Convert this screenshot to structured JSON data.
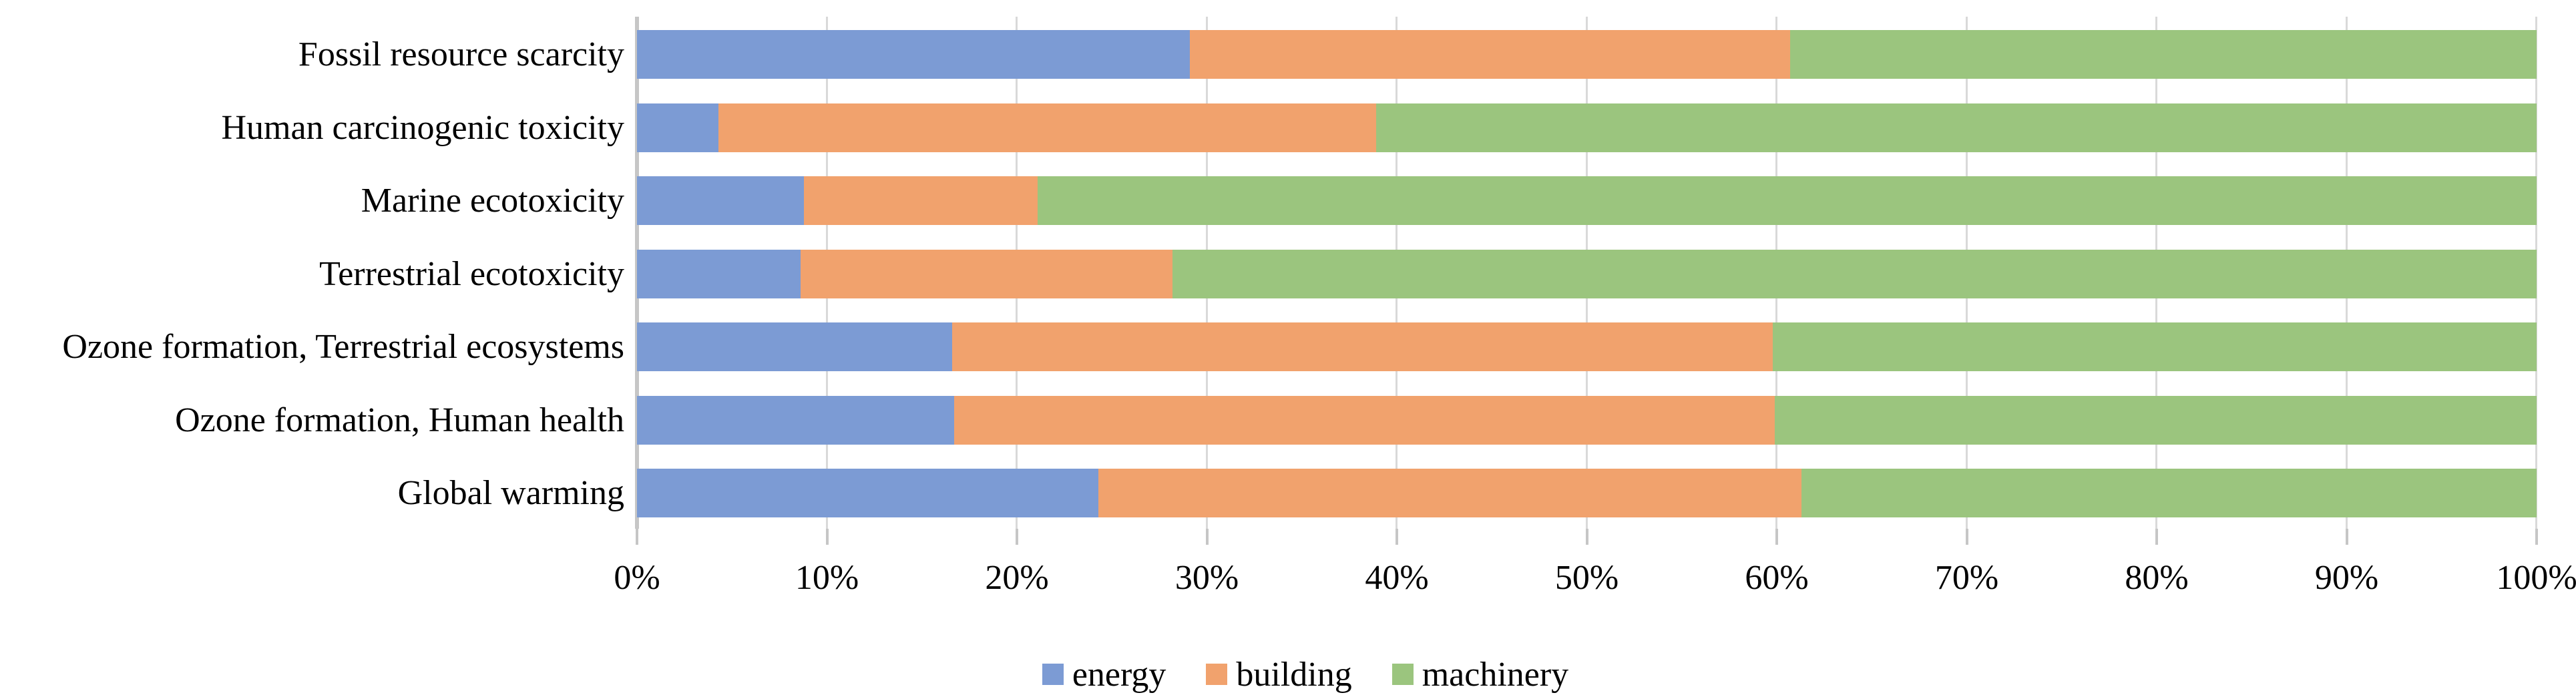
{
  "chart_data": {
    "type": "bar",
    "variant": "horizontal-stacked-100pct",
    "title": "",
    "xlabel": "",
    "ylabel": "",
    "unit": "%",
    "categories": [
      "Fossil resource scarcity",
      "Human carcinogenic toxicity",
      "Marine ecotoxicity",
      "Terrestrial ecotoxicity",
      "Ozone formation, Terrestrial ecosystems",
      "Ozone formation, Human health",
      "Global warming"
    ],
    "series": [
      {
        "name": "energy",
        "color": "#7C9BD4",
        "values": [
          29.1,
          4.3,
          8.8,
          8.6,
          16.6,
          16.7,
          24.3
        ]
      },
      {
        "name": "building",
        "color": "#F1A26D",
        "values": [
          31.6,
          34.6,
          12.3,
          19.6,
          43.2,
          43.2,
          37.0
        ]
      },
      {
        "name": "machinery",
        "color": "#9BC57E",
        "values": [
          39.3,
          61.1,
          78.9,
          71.8,
          40.2,
          40.1,
          38.7
        ]
      }
    ],
    "x_axis": {
      "min": 0,
      "max": 100,
      "tick_step": 10,
      "tick_labels": [
        "0%",
        "10%",
        "20%",
        "30%",
        "40%",
        "50%",
        "60%",
        "70%",
        "80%",
        "90%",
        "100%"
      ],
      "grid": true
    },
    "legend": {
      "position": "bottom",
      "entries": [
        "energy",
        "building",
        "machinery"
      ]
    }
  },
  "styles": {
    "background": "#FFFFFF",
    "gridline_color": "#D9D9D9",
    "axis_line_color": "#C6C6C6",
    "tick_color": "#C6C6C6",
    "text_color": "#000000"
  }
}
